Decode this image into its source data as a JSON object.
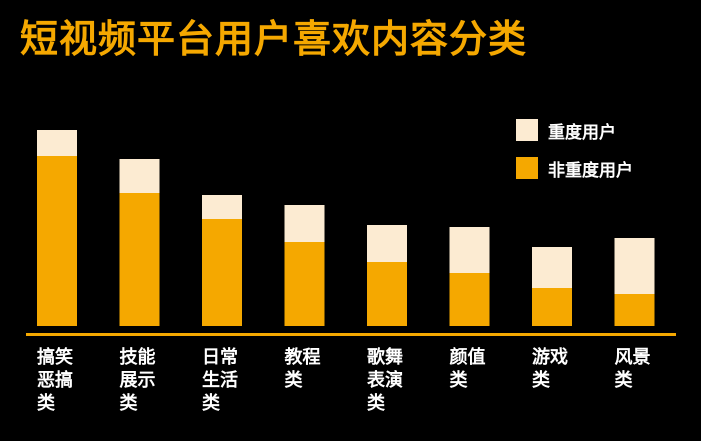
{
  "title": "短视频平台用户喜欢内容分类",
  "chart_data": {
    "type": "bar",
    "stacked": true,
    "categories": [
      "搞笑恶搞类",
      "技能展示类",
      "日常生活类",
      "教程类",
      "歌舞表演类",
      "颜值类",
      "游戏类",
      "风景类"
    ],
    "series": [
      {
        "name": "非重度用户",
        "values": [
          170,
          133,
          107,
          84,
          64,
          53,
          38,
          32
        ]
      },
      {
        "name": "重度用户",
        "values": [
          26,
          34,
          24,
          37,
          37,
          46,
          41,
          56
        ]
      }
    ],
    "ylim": [
      0,
      200
    ],
    "legend_position": "top-right",
    "grid": false
  },
  "colors": {
    "background": "#000000",
    "title": "#F5A800",
    "non_heavy": "#F5A800",
    "heavy": "#FCEBD2",
    "baseline": "#F5A800",
    "label": "#FFFFFF"
  }
}
